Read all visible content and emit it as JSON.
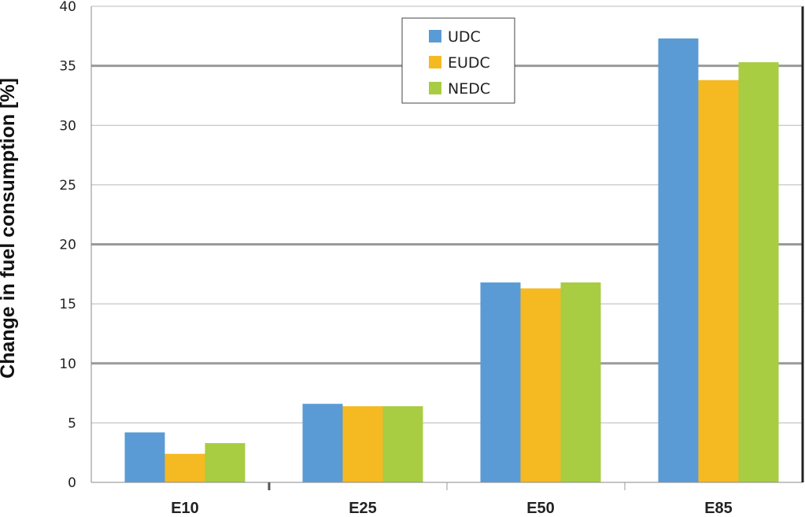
{
  "chart_data": {
    "type": "bar",
    "categories": [
      "E10",
      "E25",
      "E50",
      "E85"
    ],
    "series": [
      {
        "name": "UDC",
        "color": "#5b9bd5",
        "values": [
          4.2,
          6.6,
          16.8,
          37.3
        ]
      },
      {
        "name": "EUDC",
        "color": "#f5b922",
        "values": [
          2.4,
          6.4,
          16.3,
          33.8
        ]
      },
      {
        "name": "NEDC",
        "color": "#a8cc42",
        "values": [
          3.3,
          6.4,
          16.8,
          35.3
        ]
      }
    ],
    "ylabel": "Change in fuel consumption [%]",
    "ylim": [
      0,
      40
    ],
    "yticks": [
      0,
      5,
      10,
      15,
      20,
      25,
      30,
      35,
      40
    ],
    "grid": true,
    "legend_position": "top-center"
  }
}
